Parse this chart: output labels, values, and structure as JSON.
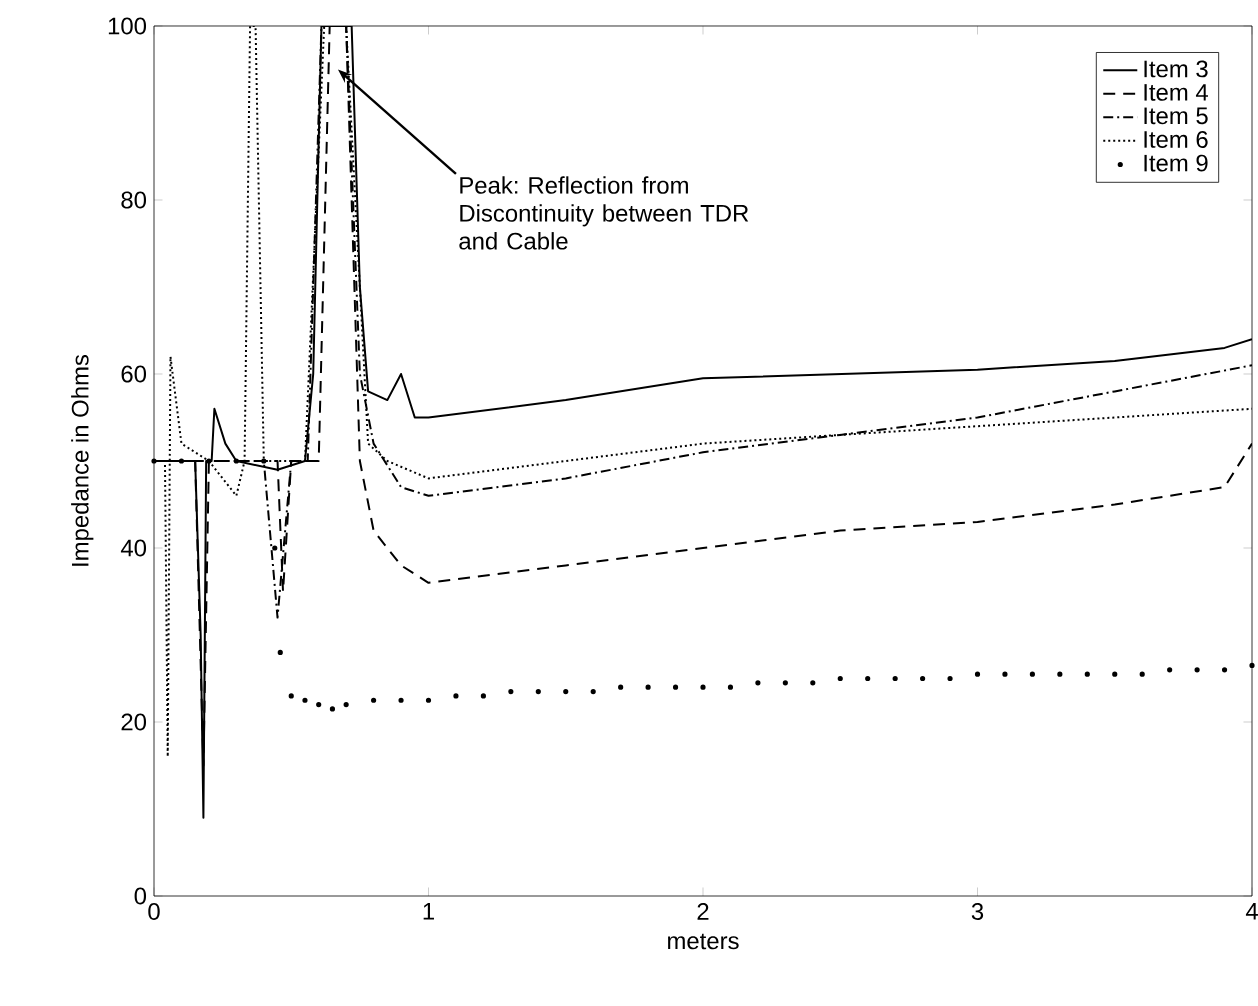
{
  "chart_data": {
    "type": "line",
    "xlabel": "meters",
    "ylabel": "Impedance in Ohms",
    "xlim": [
      0,
      4
    ],
    "ylim": [
      0,
      100
    ],
    "xticks": [
      0,
      1,
      2,
      3,
      4
    ],
    "yticks": [
      0,
      20,
      40,
      60,
      80,
      100
    ],
    "legend": "top right",
    "annotations": [
      {
        "text": "Peak: Reflection from Discontinuity between TDR and Cable",
        "x": 0.67,
        "y": 95
      }
    ],
    "series": [
      {
        "name": "Item 3",
        "color": "#000000",
        "line_style": "solid",
        "x": [
          0,
          0.15,
          0.17,
          0.18,
          0.19,
          0.21,
          0.22,
          0.26,
          0.3,
          0.45,
          0.55,
          0.58,
          0.61,
          0.72,
          0.75,
          0.78,
          0.85,
          0.9,
          0.95,
          1.0,
          1.5,
          2.0,
          2.5,
          3.0,
          3.5,
          3.9,
          4.0
        ],
        "values": [
          50,
          50,
          30,
          9,
          50,
          50,
          56,
          52,
          50,
          49,
          50,
          60,
          100,
          100,
          70,
          58,
          57,
          60,
          55,
          55,
          57,
          59.5,
          60,
          60.5,
          61.5,
          63,
          64
        ]
      },
      {
        "name": "Item 4",
        "color": "#000000",
        "line_style": "dashed",
        "x": [
          0,
          0.15,
          0.18,
          0.2,
          0.45,
          0.47,
          0.5,
          0.6,
          0.64,
          0.7,
          0.75,
          0.8,
          0.9,
          1.0,
          1.5,
          2.0,
          2.5,
          3.0,
          3.5,
          3.9,
          4.0
        ],
        "values": [
          50,
          50,
          15,
          50,
          50,
          35,
          50,
          50,
          100,
          100,
          50,
          42,
          38,
          36,
          38,
          40,
          42,
          43,
          45,
          47,
          52
        ]
      },
      {
        "name": "Item 5",
        "color": "#000000",
        "line_style": "dashdot",
        "x": [
          0,
          0.4,
          0.45,
          0.5,
          0.56,
          0.61,
          0.7,
          0.75,
          0.8,
          0.9,
          1.0,
          1.5,
          2.0,
          2.5,
          3.0,
          3.5,
          4.0
        ],
        "values": [
          50,
          50,
          32,
          50,
          50,
          100,
          100,
          60,
          52,
          47,
          46,
          48,
          51,
          53,
          55,
          58,
          61
        ]
      },
      {
        "name": "Item 6",
        "color": "#000000",
        "line_style": "dotted",
        "x": [
          0,
          0.04,
          0.05,
          0.06,
          0.1,
          0.2,
          0.3,
          0.33,
          0.35,
          0.37,
          0.4,
          0.55,
          0.62,
          0.7,
          0.78,
          0.85,
          1.0,
          1.5,
          2.0,
          2.5,
          3.0,
          3.5,
          4.0
        ],
        "values": [
          50,
          50,
          16,
          62,
          52,
          50,
          46,
          50,
          100,
          100,
          50,
          50,
          100,
          100,
          52,
          50,
          48,
          50,
          52,
          53,
          54,
          55,
          56
        ]
      },
      {
        "name": "Item 9",
        "color": "#000000",
        "type": "scatter",
        "marker": "circle",
        "x": [
          0,
          0.1,
          0.2,
          0.3,
          0.4,
          0.44,
          0.46,
          0.5,
          0.55,
          0.6,
          0.65,
          0.7,
          0.8,
          0.9,
          1.0,
          1.1,
          1.2,
          1.3,
          1.4,
          1.5,
          1.6,
          1.7,
          1.8,
          1.9,
          2.0,
          2.1,
          2.2,
          2.3,
          2.4,
          2.5,
          2.6,
          2.7,
          2.8,
          2.9,
          3.0,
          3.1,
          3.2,
          3.3,
          3.4,
          3.5,
          3.6,
          3.7,
          3.8,
          3.9,
          4.0
        ],
        "values": [
          50,
          50,
          50,
          50,
          50,
          40,
          28,
          23,
          22.5,
          22,
          21.5,
          22,
          22.5,
          22.5,
          22.5,
          23,
          23,
          23.5,
          23.5,
          23.5,
          23.5,
          24,
          24,
          24,
          24,
          24,
          24.5,
          24.5,
          24.5,
          25,
          25,
          25,
          25,
          25,
          25.5,
          25.5,
          25.5,
          25.5,
          25.5,
          25.5,
          25.5,
          26,
          26,
          26,
          26.5
        ]
      }
    ]
  }
}
